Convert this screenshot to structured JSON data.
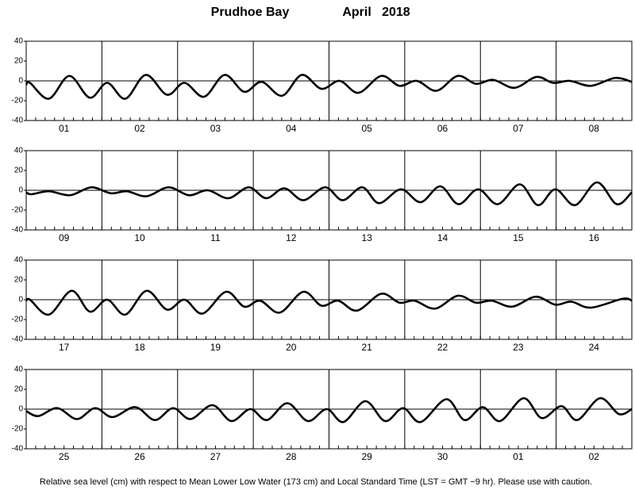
{
  "title": "Prudhoe Bay",
  "subtitle": "April   2018",
  "footnote": "Relative sea level (cm) with respect to Mean Lower Low Water (173 cm) and Local Standard Time (LST = GMT −9 hr). Please use with caution.",
  "chart_data": [
    {
      "type": "line",
      "color": "#000000",
      "xlim": [
        0,
        8
      ],
      "ylim": [
        -40,
        40
      ],
      "yticks": [
        -40,
        -20,
        0,
        20,
        40
      ],
      "zero_line": true,
      "xgrid": [
        1,
        2,
        3,
        4,
        5,
        6,
        7
      ],
      "xticks": [
        {
          "value": 0.5,
          "label": "01"
        },
        {
          "value": 1.5,
          "label": "02"
        },
        {
          "value": 2.5,
          "label": "03"
        },
        {
          "value": 3.5,
          "label": "04"
        },
        {
          "value": 4.5,
          "label": "05"
        },
        {
          "value": 5.5,
          "label": "06"
        },
        {
          "value": 6.5,
          "label": "07"
        },
        {
          "value": 7.5,
          "label": "08"
        }
      ],
      "x": [
        0.0,
        0.05,
        0.3,
        0.57,
        0.84,
        1.07,
        1.31,
        1.58,
        1.86,
        2.09,
        2.35,
        2.62,
        2.88,
        3.11,
        3.38,
        3.64,
        3.9,
        4.14,
        4.39,
        4.69,
        4.93,
        5.16,
        5.42,
        5.7,
        5.94,
        6.17,
        6.45,
        6.74,
        6.96,
        7.18,
        7.46,
        7.78,
        8.0
      ],
      "values": [
        -4,
        -2,
        -18,
        5,
        -17,
        -2,
        -18,
        6,
        -14,
        -2,
        -16,
        6,
        -11,
        -1,
        -15,
        6,
        -8,
        0,
        -12,
        5,
        -5,
        0,
        -10,
        5,
        -3,
        1,
        -7,
        4,
        -2,
        0,
        -5,
        3,
        -1
      ]
    },
    {
      "type": "line",
      "color": "#000000",
      "xlim": [
        0,
        8
      ],
      "ylim": [
        -40,
        40
      ],
      "yticks": [
        -40,
        -20,
        0,
        20,
        40
      ],
      "zero_line": true,
      "xgrid": [
        1,
        2,
        3,
        4,
        5,
        6,
        7
      ],
      "xticks": [
        {
          "value": 0.5,
          "label": "09"
        },
        {
          "value": 1.5,
          "label": "10"
        },
        {
          "value": 2.5,
          "label": "11"
        },
        {
          "value": 3.5,
          "label": "12"
        },
        {
          "value": 4.5,
          "label": "13"
        },
        {
          "value": 5.5,
          "label": "14"
        },
        {
          "value": 6.5,
          "label": "15"
        },
        {
          "value": 7.5,
          "label": "16"
        }
      ],
      "x": [
        0.0,
        0.07,
        0.3,
        0.58,
        0.86,
        1.12,
        1.33,
        1.59,
        1.88,
        2.15,
        2.4,
        2.67,
        2.94,
        3.17,
        3.41,
        3.66,
        3.95,
        4.18,
        4.44,
        4.66,
        4.95,
        5.21,
        5.47,
        5.71,
        5.97,
        6.23,
        6.52,
        6.76,
        6.99,
        7.25,
        7.54,
        7.8,
        8.0
      ],
      "values": [
        -2,
        -4,
        -1,
        -5,
        3,
        -3,
        -1,
        -6,
        3,
        -5,
        0,
        -8,
        3,
        -8,
        2,
        -10,
        3,
        -10,
        3,
        -13,
        1,
        -12,
        4,
        -14,
        1,
        -14,
        6,
        -15,
        1,
        -15,
        8,
        -14,
        -2
      ]
    },
    {
      "type": "line",
      "color": "#000000",
      "xlim": [
        0,
        8
      ],
      "ylim": [
        -40,
        40
      ],
      "yticks": [
        -40,
        -20,
        0,
        20,
        40
      ],
      "zero_line": true,
      "xgrid": [
        1,
        2,
        3,
        4,
        5,
        6,
        7
      ],
      "xticks": [
        {
          "value": 0.5,
          "label": "17"
        },
        {
          "value": 1.5,
          "label": "18"
        },
        {
          "value": 2.5,
          "label": "19"
        },
        {
          "value": 3.5,
          "label": "20"
        },
        {
          "value": 4.5,
          "label": "21"
        },
        {
          "value": 5.5,
          "label": "22"
        },
        {
          "value": 6.5,
          "label": "23"
        },
        {
          "value": 7.5,
          "label": "24"
        }
      ],
      "x": [
        0.0,
        0.05,
        0.3,
        0.6,
        0.84,
        1.07,
        1.31,
        1.59,
        1.86,
        2.09,
        2.33,
        2.64,
        2.88,
        3.09,
        3.35,
        3.66,
        3.9,
        4.12,
        4.37,
        4.69,
        4.93,
        5.13,
        5.4,
        5.7,
        5.94,
        6.15,
        6.42,
        6.73,
        6.99,
        7.2,
        7.46,
        7.88,
        8.0
      ],
      "values": [
        -1,
        0,
        -15,
        9,
        -12,
        0,
        -15,
        9,
        -10,
        0,
        -14,
        8,
        -7,
        -1,
        -13,
        8,
        -6,
        -1,
        -11,
        6,
        -3,
        -1,
        -9,
        4,
        -3,
        -1,
        -7,
        3,
        -5,
        -2,
        -8,
        1,
        -1
      ]
    },
    {
      "type": "line",
      "color": "#000000",
      "xlim": [
        0,
        8
      ],
      "ylim": [
        -40,
        40
      ],
      "yticks": [
        -40,
        -20,
        0,
        20,
        40
      ],
      "zero_line": true,
      "xgrid": [
        1,
        2,
        3,
        4,
        5,
        6,
        7
      ],
      "xticks": [
        {
          "value": 0.5,
          "label": "25"
        },
        {
          "value": 1.5,
          "label": "26"
        },
        {
          "value": 2.5,
          "label": "27"
        },
        {
          "value": 3.5,
          "label": "28"
        },
        {
          "value": 4.5,
          "label": "29"
        },
        {
          "value": 5.5,
          "label": "30"
        },
        {
          "value": 6.5,
          "label": "01"
        },
        {
          "value": 7.5,
          "label": "02"
        }
      ],
      "x": [
        0.0,
        0.16,
        0.41,
        0.67,
        0.91,
        1.14,
        1.44,
        1.7,
        1.94,
        2.17,
        2.46,
        2.71,
        2.96,
        3.18,
        3.45,
        3.72,
        3.97,
        4.19,
        4.48,
        4.74,
        4.98,
        5.21,
        5.55,
        5.79,
        6.03,
        6.26,
        6.57,
        6.81,
        7.07,
        7.28,
        7.58,
        7.83,
        8.0
      ],
      "values": [
        -2,
        -7,
        1,
        -10,
        1,
        -8,
        2,
        -11,
        1,
        -10,
        4,
        -12,
        0,
        -11,
        6,
        -12,
        0,
        -13,
        8,
        -12,
        1,
        -13,
        10,
        -11,
        2,
        -12,
        11,
        -9,
        3,
        -11,
        11,
        -5,
        0
      ]
    }
  ]
}
